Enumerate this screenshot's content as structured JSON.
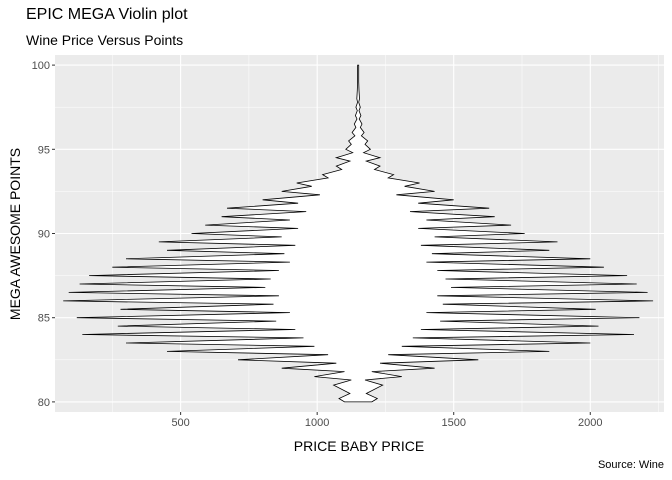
{
  "title": "EPIC MEGA Violin plot",
  "subtitle": "Wine Price Versus Points",
  "caption": "Source: Wine",
  "colors": {
    "panel": "#ebebeb",
    "grid_major": "#ffffff",
    "outline": "#000000",
    "fill": "#ffffff"
  },
  "chart_data": {
    "type": "violin",
    "xlabel": "PRICE BABY PRICE",
    "ylabel": "MEGA AWESOME POINTS",
    "xlim": [
      40,
      2270
    ],
    "ylim": [
      79.4,
      100.6
    ],
    "x_ticks": [
      500,
      1000,
      1500,
      2000
    ],
    "x_tick_labels": [
      "500",
      "1000",
      "1500",
      "2000"
    ],
    "y_ticks": [
      80,
      85,
      90,
      95,
      100
    ],
    "y_tick_labels": [
      "80",
      "85",
      "90",
      "95",
      "100"
    ],
    "grid": true,
    "center_x": 1150,
    "profile": {
      "description_of_fields": "y = points, w = half-width of violin in price units at that y",
      "y": [
        80.0,
        80.2,
        80.5,
        81.0,
        81.3,
        81.5,
        81.8,
        82.0,
        82.3,
        82.5,
        82.8,
        83.0,
        83.3,
        83.5,
        83.8,
        84.0,
        84.3,
        84.5,
        84.8,
        85.0,
        85.3,
        85.5,
        85.8,
        86.0,
        86.3,
        86.5,
        86.8,
        87.0,
        87.3,
        87.5,
        87.8,
        88.0,
        88.3,
        88.5,
        88.8,
        89.0,
        89.3,
        89.5,
        89.8,
        90.0,
        90.3,
        90.5,
        90.8,
        91.0,
        91.3,
        91.5,
        91.8,
        92.0,
        92.3,
        92.5,
        92.8,
        93.0,
        93.3,
        93.5,
        93.8,
        94.0,
        94.3,
        94.5,
        94.8,
        95.0,
        95.3,
        95.5,
        95.8,
        96.0,
        96.3,
        96.5,
        96.8,
        97.0,
        97.3,
        97.5,
        97.8,
        98.0,
        98.5,
        99.0,
        99.5,
        100.0
      ],
      "w": [
        50,
        70,
        30,
        90,
        25,
        160,
        50,
        280,
        80,
        440,
        110,
        700,
        160,
        850,
        200,
        1010,
        230,
        880,
        300,
        1030,
        250,
        870,
        310,
        1080,
        290,
        1060,
        340,
        1020,
        320,
        985,
        290,
        900,
        250,
        850,
        270,
        700,
        230,
        730,
        280,
        610,
        220,
        560,
        250,
        500,
        190,
        480,
        220,
        350,
        140,
        280,
        170,
        225,
        110,
        130,
        60,
        80,
        30,
        80,
        20,
        45,
        25,
        35,
        12,
        22,
        8,
        14,
        4,
        10,
        3,
        8,
        2,
        5,
        3,
        2,
        2,
        2
      ]
    }
  }
}
